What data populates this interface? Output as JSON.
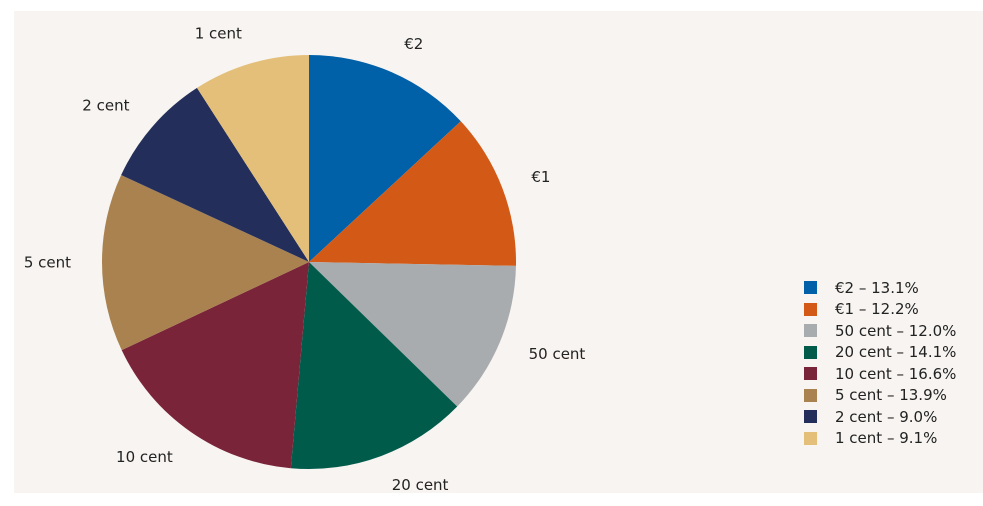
{
  "chart_data": {
    "type": "pie",
    "slices": [
      {
        "label": "€2",
        "value": 13.1,
        "legend": "€2 – 13.1%",
        "color": "#0060a8"
      },
      {
        "label": "€1",
        "value": 12.2,
        "legend": "€1 – 12.2%",
        "color": "#d35a16"
      },
      {
        "label": "50 cent",
        "value": 12.0,
        "legend": "50 cent – 12.0%",
        "color": "#a9acaf"
      },
      {
        "label": "20 cent",
        "value": 14.1,
        "legend": "20 cent – 14.1%",
        "color": "#005b4b"
      },
      {
        "label": "10 cent",
        "value": 16.6,
        "legend": "10 cent – 16.6%",
        "color": "#7a2439"
      },
      {
        "label": "5 cent",
        "value": 13.9,
        "legend": "5 cent – 13.9%",
        "color": "#a9824f"
      },
      {
        "label": "2 cent",
        "value": 9.0,
        "legend": "2 cent – 9.0%",
        "color": "#232f5a"
      },
      {
        "label": "1 cent",
        "value": 9.1,
        "legend": "1 cent – 9.1%",
        "color": "#e3bf7a"
      }
    ],
    "start": "12 o'clock",
    "direction": "clockwise",
    "legend_position": "right"
  }
}
